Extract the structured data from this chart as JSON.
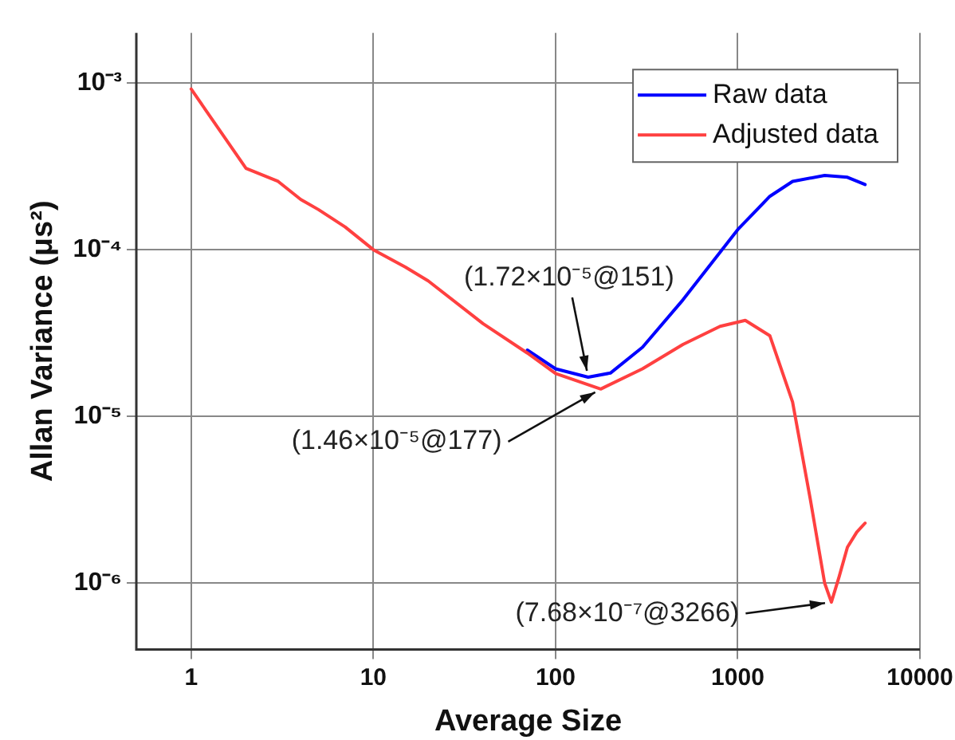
{
  "chart_data": {
    "type": "line",
    "xlabel": "Average Size",
    "ylabel": "Allan Variance (μs²)",
    "log": "xy",
    "grid": true,
    "legend": "top right",
    "marker": "none",
    "line_style": "solid",
    "xlim": [
      0.5,
      10000
    ],
    "xticks": [
      1,
      10,
      100,
      1000,
      10000
    ],
    "ylim": [
      4e-07,
      0.002
    ],
    "yticks": [
      {
        "value": 1e-06,
        "label": "10⁻⁶"
      },
      {
        "value": 1e-05,
        "label": "10⁻⁵"
      },
      {
        "value": 0.0001,
        "label": "10⁻⁴"
      },
      {
        "value": 0.001,
        "label": "10⁻³"
      }
    ],
    "series": [
      {
        "name": "Raw data",
        "color": "#0000ff",
        "x": [
          70,
          100,
          151,
          200,
          300,
          500,
          1000,
          1500,
          2000,
          3000,
          4000,
          5000
        ],
        "values": [
          2.5e-05,
          1.93e-05,
          1.72e-05,
          1.82e-05,
          2.6e-05,
          5e-05,
          0.000132,
          0.000209,
          0.000257,
          0.000279,
          0.000272,
          0.000246
        ]
      },
      {
        "name": "Adjusted data",
        "color": "#ff4040",
        "x": [
          1,
          2,
          3,
          4,
          5,
          7,
          10,
          15,
          20,
          40,
          70,
          100,
          177,
          300,
          500,
          800,
          1100,
          1500,
          2000,
          2500,
          3000,
          3266,
          3600,
          4000,
          4500,
          5000
        ],
        "values": [
          0.00092,
          0.000308,
          0.000257,
          0.0002,
          0.000174,
          0.000137,
          0.0001,
          7.86e-05,
          6.5e-05,
          3.6e-05,
          2.4e-05,
          1.81e-05,
          1.46e-05,
          1.93e-05,
          2.7e-05,
          3.47e-05,
          3.77e-05,
          3.05e-05,
          1.22e-05,
          3.2e-06,
          1e-06,
          7.68e-07,
          1.09e-06,
          1.64e-06,
          2.02e-06,
          2.29e-06
        ]
      }
    ],
    "annotations": [
      {
        "text": "(1.72×10⁻⁵@151)",
        "x": 151,
        "y": 1.72e-05
      },
      {
        "text": "(1.46×10⁻⁵@177)",
        "x": 177,
        "y": 1.46e-05
      },
      {
        "text": "(7.68×10⁻⁷@3266)",
        "x": 3266,
        "y": 7.68e-07
      }
    ]
  }
}
